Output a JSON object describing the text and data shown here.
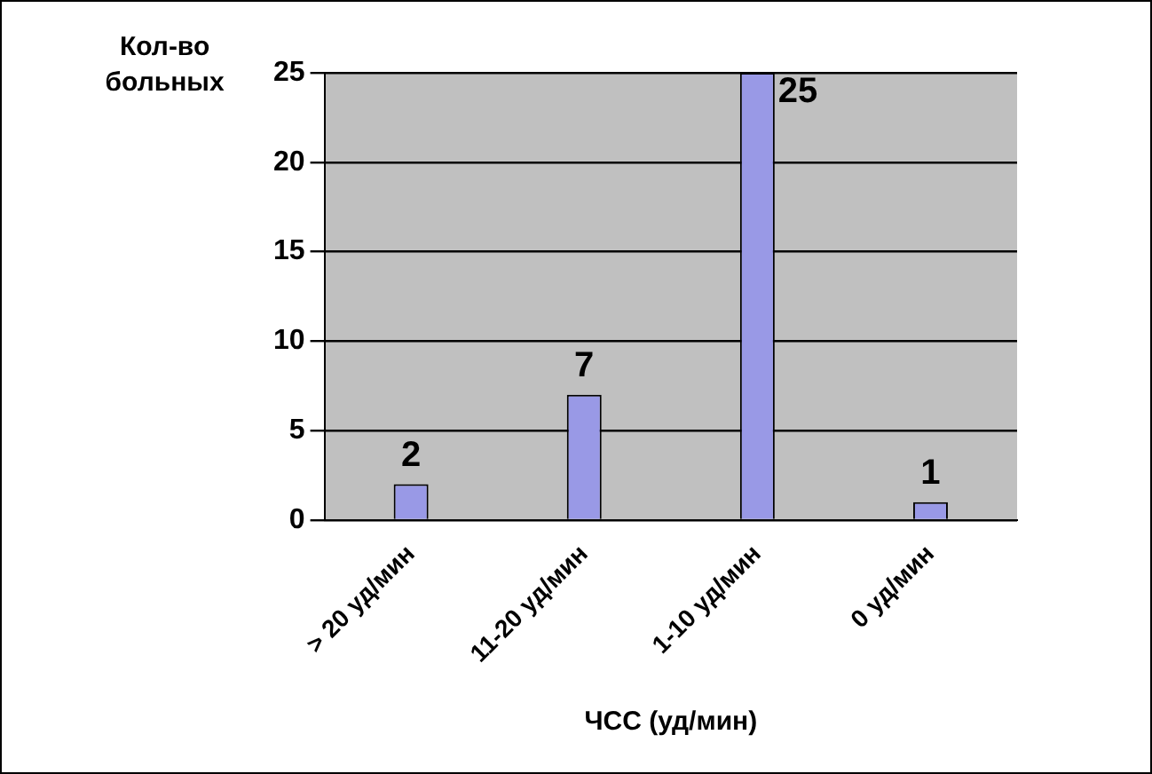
{
  "chart_data": {
    "type": "bar",
    "xlabel": "ЧСС (уд/мин)",
    "ylabel": "Кол-во больных",
    "categories": [
      "> 20 уд/мин",
      "11-20 уд/мин",
      "1-10 уд/мин",
      "0 уд/мин"
    ],
    "values": [
      2,
      7,
      25,
      1
    ],
    "color": "#9999e6",
    "ylim": [
      0,
      25
    ],
    "yticks": [
      0,
      5,
      10,
      15,
      20,
      25
    ],
    "grid": "y",
    "legend": false,
    "data_labels": true
  }
}
